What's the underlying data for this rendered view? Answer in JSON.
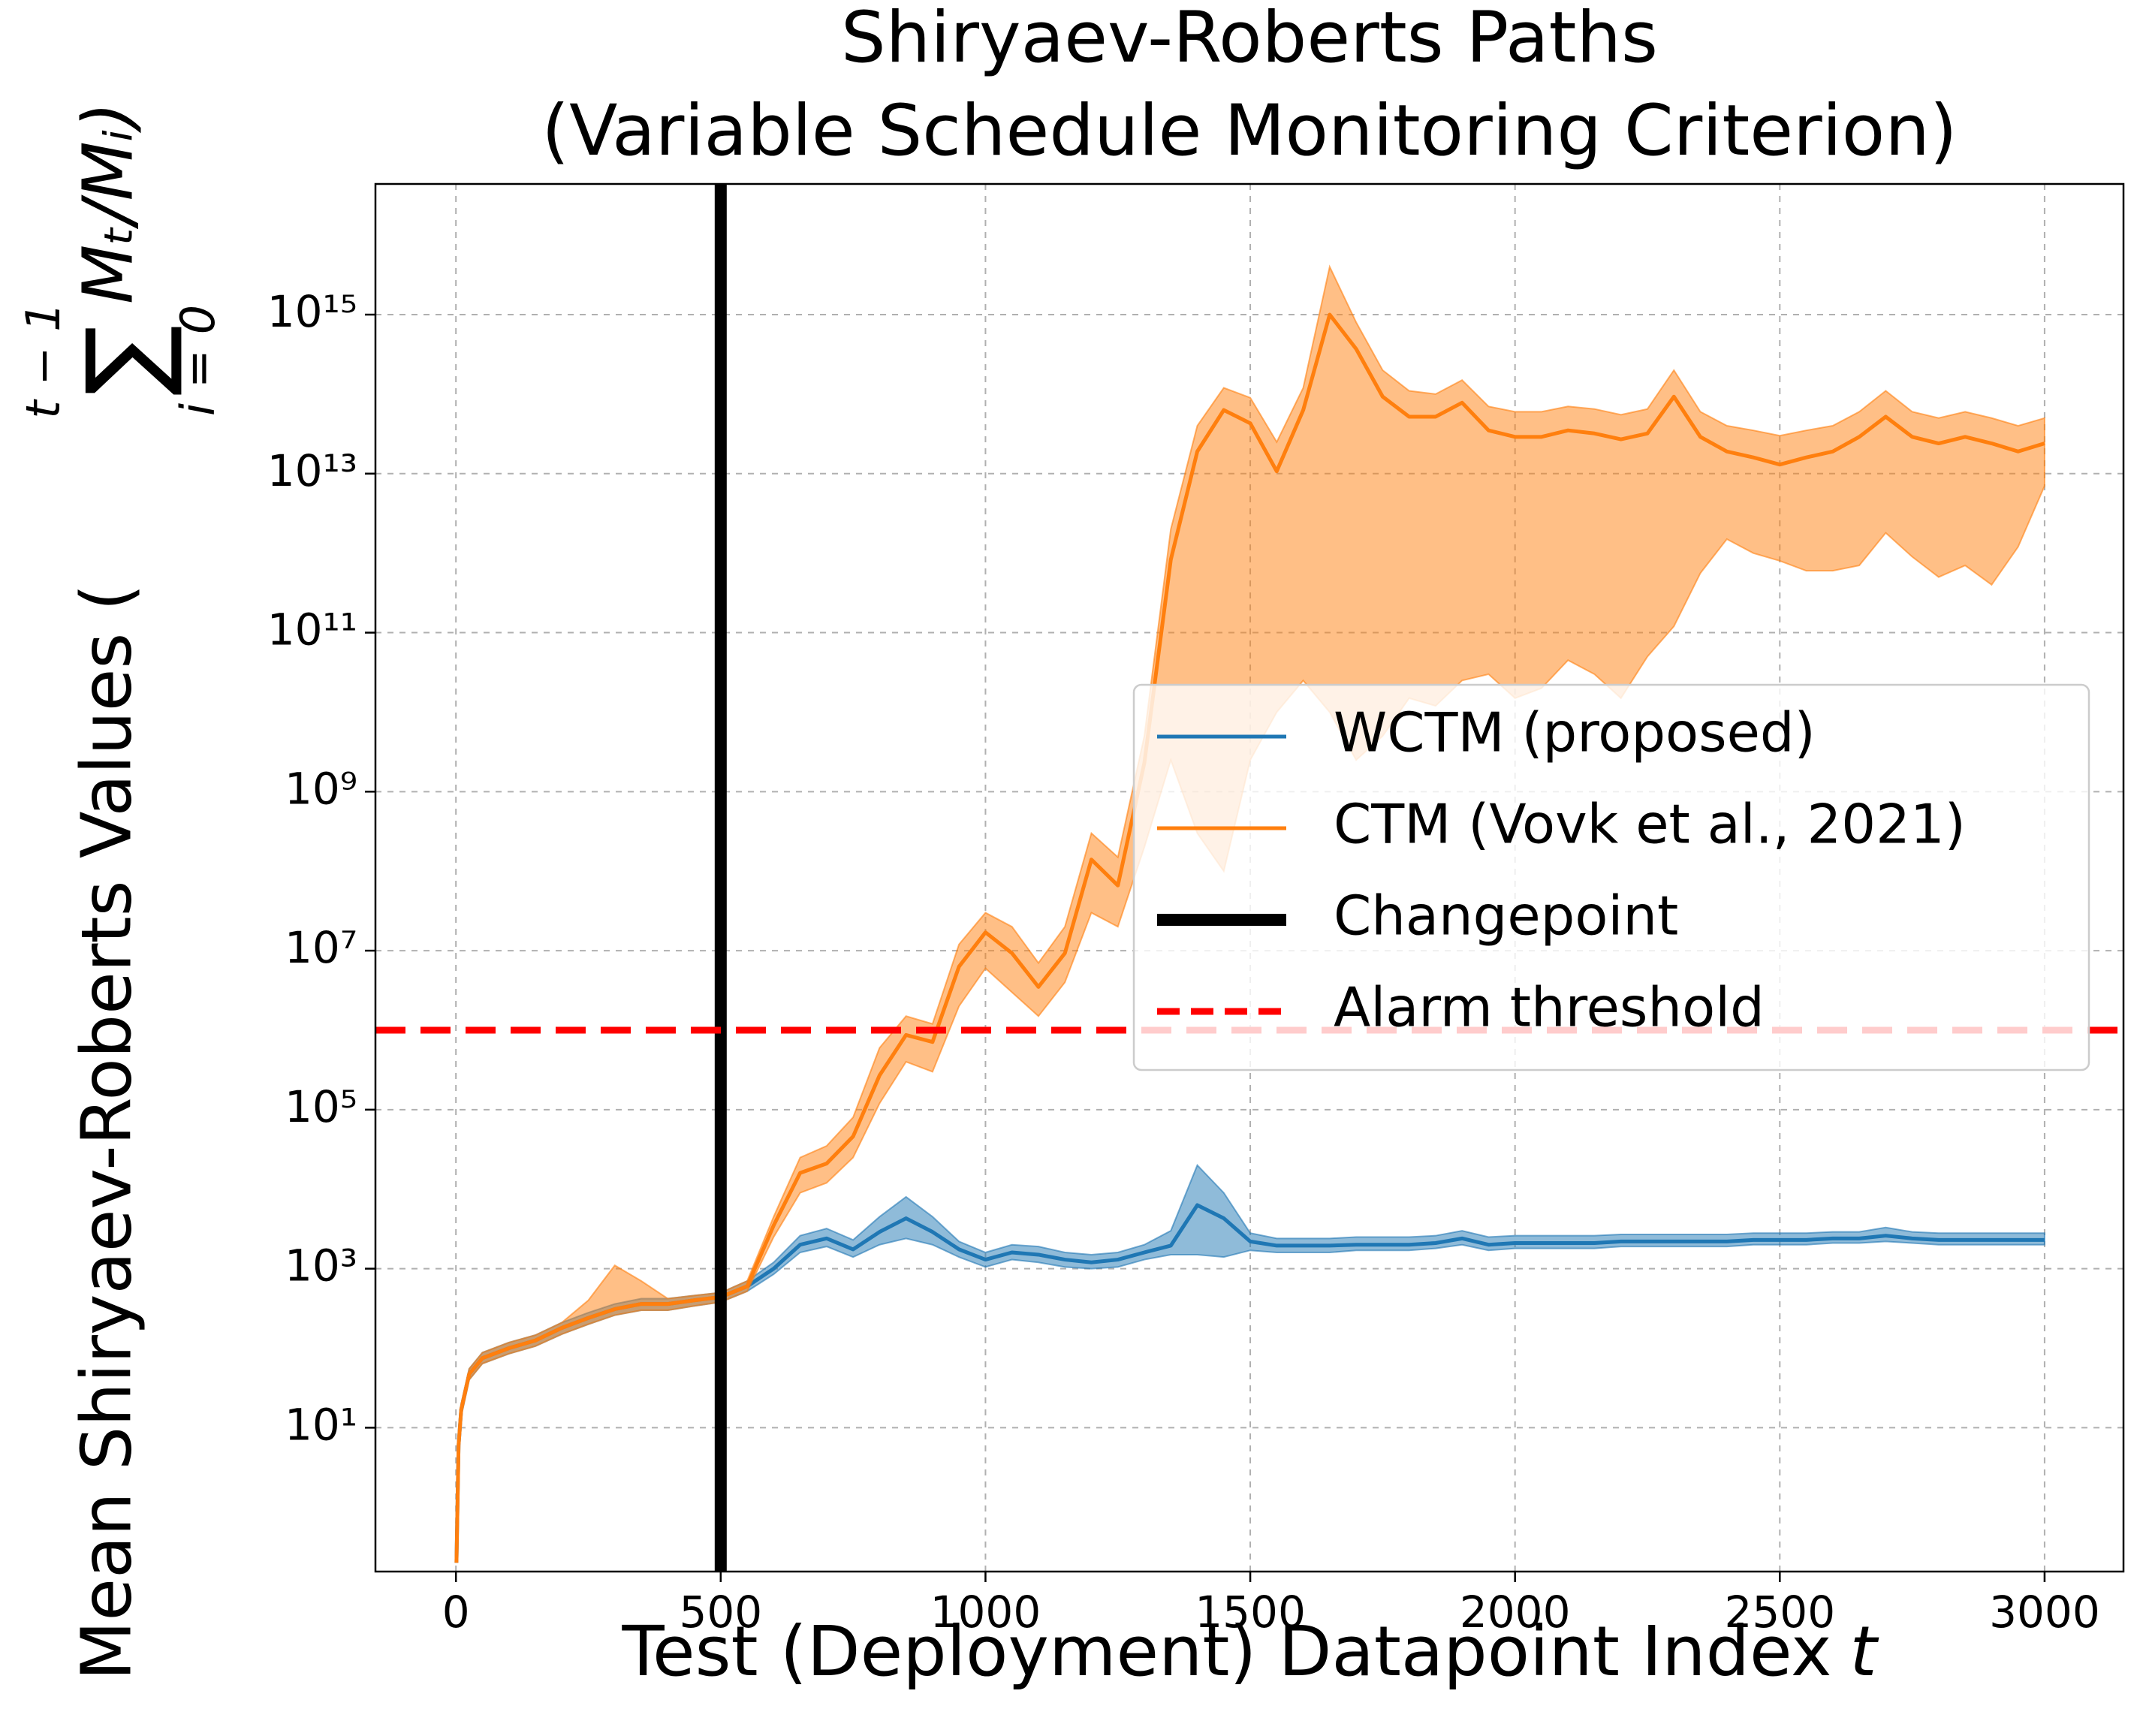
{
  "chart_data": {
    "type": "line",
    "title": [
      "Shiryaev-Roberts Paths",
      "(Variable Schedule Monitoring Criterion)"
    ],
    "x_label": "Test (Deployment) Datapoint Index",
    "x_label_var": "t",
    "y_label": {
      "text": "Mean Shiryaev-Roberts Values (",
      "sum": "∑",
      "sum_upper": "t − 1",
      "sum_lower": "i = 0",
      "term": "Mₜ/Mᵢ)"
    },
    "log_y": true,
    "grid": true,
    "xlim": [
      -152,
      3149
    ],
    "xticks": [
      0,
      500,
      1000,
      1500,
      2000,
      2500,
      3000
    ],
    "ylim": [
      0.155,
      4.4e+16
    ],
    "yticks": [
      {
        "value": 10,
        "label": "10¹"
      },
      {
        "value": 1000,
        "label": "10³"
      },
      {
        "value": 100000,
        "label": "10⁵"
      },
      {
        "value": 10000000,
        "label": "10⁷"
      },
      {
        "value": 1000000000,
        "label": "10⁹"
      },
      {
        "value": 100000000000,
        "label": "10¹¹"
      },
      {
        "value": 10000000000000,
        "label": "10¹³"
      },
      {
        "value": 1000000000000000,
        "label": "10¹⁵"
      }
    ],
    "x": [
      1,
      5,
      10,
      25,
      50,
      100,
      150,
      200,
      250,
      300,
      350,
      400,
      450,
      500,
      550,
      600,
      650,
      700,
      750,
      800,
      850,
      900,
      950,
      1000,
      1050,
      1100,
      1150,
      1200,
      1250,
      1300,
      1350,
      1400,
      1450,
      1500,
      1550,
      1600,
      1650,
      1700,
      1750,
      1800,
      1850,
      1900,
      1950,
      2000,
      2050,
      2100,
      2150,
      2200,
      2250,
      2300,
      2350,
      2400,
      2450,
      2500,
      2550,
      2600,
      2650,
      2700,
      2750,
      2800,
      2850,
      2900,
      2950,
      3000
    ],
    "series": [
      {
        "name": "WCTM (proposed)",
        "color": "#1f77b4",
        "values": [
          0.2,
          6,
          17,
          47,
          75,
          100,
          125,
          180,
          240,
          310,
          360,
          360,
          400,
          440,
          600,
          1000,
          2000,
          2400,
          1750,
          2900,
          4300,
          2900,
          1750,
          1300,
          1600,
          1500,
          1300,
          1200,
          1300,
          1600,
          1950,
          6300,
          4300,
          2200,
          1950,
          1950,
          1950,
          2000,
          2000,
          2000,
          2100,
          2400,
          2000,
          2100,
          2100,
          2100,
          2100,
          2200,
          2200,
          2200,
          2200,
          2200,
          2300,
          2300,
          2300,
          2400,
          2400,
          2600,
          2400,
          2300,
          2300,
          2300,
          2300,
          2300
        ],
        "band_lower": [
          0.2,
          5,
          14,
          40,
          64,
          85,
          106,
          150,
          200,
          260,
          300,
          300,
          340,
          380,
          520,
          850,
          1600,
          1900,
          1400,
          2000,
          2400,
          2000,
          1400,
          1050,
          1300,
          1200,
          1050,
          1000,
          1050,
          1300,
          1500,
          1500,
          1400,
          1700,
          1600,
          1600,
          1600,
          1700,
          1700,
          1700,
          1800,
          2000,
          1700,
          1800,
          1800,
          1800,
          1800,
          1900,
          1900,
          1900,
          1900,
          1900,
          2000,
          2000,
          2000,
          2100,
          2100,
          2200,
          2100,
          2000,
          2000,
          2000,
          2000,
          2000
        ],
        "band_upper": [
          0.2,
          7,
          20,
          55,
          88,
          118,
          146,
          210,
          280,
          360,
          420,
          420,
          460,
          500,
          700,
          1200,
          2600,
          3200,
          2300,
          4500,
          8000,
          4500,
          2200,
          1600,
          2000,
          1900,
          1600,
          1500,
          1600,
          2000,
          3000,
          20000,
          9000,
          2800,
          2400,
          2400,
          2400,
          2500,
          2500,
          2500,
          2600,
          3000,
          2500,
          2600,
          2600,
          2600,
          2600,
          2700,
          2700,
          2700,
          2700,
          2700,
          2800,
          2800,
          2800,
          2900,
          2900,
          3300,
          2900,
          2800,
          2800,
          2800,
          2800,
          2800
        ]
      },
      {
        "name": "CTM (Vovk et al., 2021)",
        "color": "#ff7f0e",
        "values": [
          0.2,
          6,
          17,
          47,
          75,
          100,
          125,
          180,
          240,
          310,
          360,
          360,
          400,
          440,
          600,
          3500,
          16000,
          21000,
          46000,
          270000,
          870000,
          710000,
          6300000,
          17000000,
          9300000,
          3500000,
          9300000,
          140000000,
          66000000,
          2300000000,
          830000000000,
          19000000000000.0,
          63000000000000.0,
          43000000000000.0,
          10700000000000.0,
          63000000000000.0,
          1000000000000000.0,
          370000000000000.0,
          93000000000000.0,
          52000000000000.0,
          52000000000000.0,
          78000000000000.0,
          35000000000000.0,
          29000000000000.0,
          29000000000000.0,
          35000000000000.0,
          32000000000000.0,
          27000000000000.0,
          32000000000000.0,
          93000000000000.0,
          29000000000000.0,
          19000000000000.0,
          16000000000000.0,
          13000000000000.0,
          16000000000000.0,
          19000000000000.0,
          29000000000000.0,
          52000000000000.0,
          29000000000000.0,
          24000000000000.0,
          29000000000000.0,
          24000000000000.0,
          19000000000000.0,
          24000000000000.0
        ],
        "band_lower": [
          0.2,
          5,
          14,
          40,
          64,
          85,
          106,
          150,
          200,
          260,
          300,
          300,
          340,
          380,
          520,
          2500,
          9000,
          12000,
          25000,
          120000,
          400000,
          300000,
          2000000,
          6000000,
          3000000,
          1500000,
          4000000,
          30000000,
          20000000,
          200000000,
          2500000000,
          300000000,
          100000000,
          2500000000,
          10000000000,
          25000000000,
          10000000000,
          2500000000,
          5000000000,
          15000000000,
          12000000000,
          25000000000,
          30000000000,
          15000000000,
          20000000000,
          45000000000,
          30000000000,
          15000000000,
          50000000000,
          120000000000,
          560000000000,
          1500000000000.0,
          1000000000000.0,
          800000000000,
          600000000000,
          600000000000,
          700000000000,
          1800000000000.0,
          900000000000,
          500000000000,
          700000000000,
          400000000000,
          1200000000000.0,
          7000000000000.0
        ],
        "band_upper": [
          0.2,
          7,
          20,
          55,
          88,
          118,
          146,
          210,
          400,
          1100,
          700,
          420,
          460,
          500,
          700,
          4500,
          25000,
          35000,
          80000,
          600000,
          1500000,
          1200000,
          12000000,
          30000000,
          20000000,
          7000000,
          20000000,
          300000000,
          150000000,
          5000000000,
          2000000000000.0,
          40000000000000.0,
          120000000000000.0,
          90000000000000.0,
          25000000000000.0,
          120000000000000.0,
          4000000000000000.0,
          800000000000000.0,
          200000000000000.0,
          110000000000000.0,
          100000000000000.0,
          150000000000000.0,
          70000000000000.0,
          60000000000000.0,
          60000000000000.0,
          70000000000000.0,
          65000000000000.0,
          55000000000000.0,
          65000000000000.0,
          200000000000000.0,
          60000000000000.0,
          40000000000000.0,
          35000000000000.0,
          30000000000000.0,
          35000000000000.0,
          40000000000000.0,
          60000000000000.0,
          110000000000000.0,
          60000000000000.0,
          50000000000000.0,
          60000000000000.0,
          50000000000000.0,
          40000000000000.0,
          50000000000000.0
        ]
      }
    ],
    "changepoint": {
      "name": "Changepoint",
      "x": 500,
      "color": "#000000"
    },
    "threshold": {
      "name": "Alarm threshold",
      "y": 1000000,
      "color": "#ff0000"
    },
    "legend": "right"
  }
}
